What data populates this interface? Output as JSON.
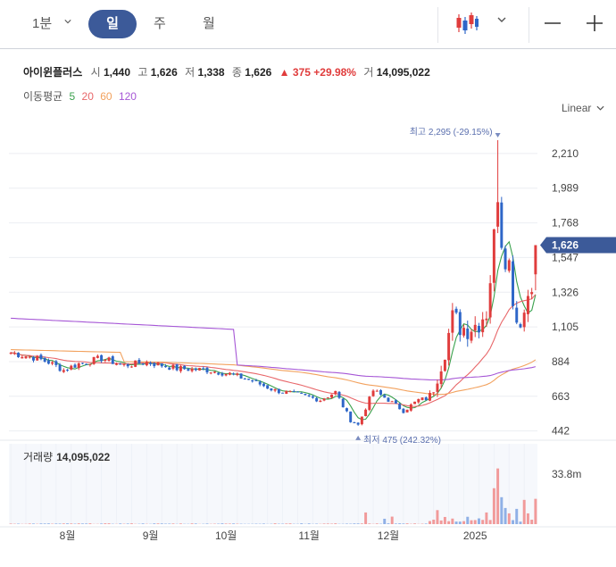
{
  "toolbar": {
    "timeframe_minute": "1분",
    "timeframe_day": "일",
    "timeframe_week": "주",
    "timeframe_month": "월",
    "chart_type_icon": "candlestick-icon",
    "zoom_out_icon": "minus-icon",
    "zoom_in_icon": "plus-icon"
  },
  "quote": {
    "name": "아이윈플러스",
    "open_label": "시",
    "open": "1,440",
    "high_label": "고",
    "high": "1,626",
    "low_label": "저",
    "low": "1,338",
    "close_label": "종",
    "close": "1,626",
    "change": "375",
    "change_pct": "+29.98%",
    "volume_label": "거",
    "volume": "14,095,022"
  },
  "moving_average": {
    "label": "이동평균",
    "periods": [
      "5",
      "20",
      "60",
      "120"
    ],
    "colors": [
      "#3aa14d",
      "#e8676a",
      "#f2a15d",
      "#a657d6"
    ]
  },
  "scale_mode": "Linear",
  "colors": {
    "up": "#e03c3c",
    "down": "#2e66c8",
    "accent": "#3c5a99"
  },
  "annotations": {
    "high": "최고 2,295 (-29.15%)",
    "low": "최저 475 (242.32%)",
    "current_price": "1,626"
  },
  "volume_panel": {
    "title": "거래량",
    "value": "14,095,022",
    "axis_max_label": "33.8m"
  },
  "chart_data": {
    "type": "candlestick",
    "y_ticks": [
      442,
      663,
      884,
      1105,
      1326,
      1547,
      1768,
      1989,
      2210
    ],
    "y_tick_labels": [
      "442",
      "663",
      "884",
      "1,105",
      "1,326",
      "1,547",
      "1,768",
      "1,989",
      "2,210"
    ],
    "ylim": [
      400,
      2420
    ],
    "x_tick_labels": [
      "8월",
      "9월",
      "10월",
      "11월",
      "12월",
      "2025"
    ],
    "x_tick_positions": [
      15,
      37,
      57,
      79,
      100,
      123
    ],
    "n_days": 140,
    "volume_max": 33800000,
    "ohlc_keypoints": [
      [
        0,
        940
      ],
      [
        6,
        910
      ],
      [
        10,
        880
      ],
      [
        14,
        830
      ],
      [
        18,
        870
      ],
      [
        24,
        905
      ],
      [
        30,
        860
      ],
      [
        36,
        880
      ],
      [
        44,
        840
      ],
      [
        52,
        830
      ],
      [
        58,
        805
      ],
      [
        64,
        760
      ],
      [
        70,
        700
      ],
      [
        76,
        675
      ],
      [
        82,
        640
      ],
      [
        86,
        690
      ],
      [
        90,
        510
      ],
      [
        92,
        480
      ],
      [
        96,
        700
      ],
      [
        100,
        640
      ],
      [
        104,
        570
      ],
      [
        108,
        640
      ],
      [
        111,
        650
      ],
      [
        114,
        880
      ],
      [
        117,
        1150
      ],
      [
        120,
        1100
      ],
      [
        123,
        1120
      ],
      [
        126,
        1210
      ],
      [
        128,
        1650
      ],
      [
        129,
        2150
      ],
      [
        130,
        1700
      ],
      [
        132,
        1500
      ],
      [
        134,
        1150
      ],
      [
        136,
        1200
      ],
      [
        138,
        1440
      ],
      [
        139,
        1626
      ]
    ],
    "volume_spikes": [
      {
        "day": 94,
        "value": 6500000
      },
      {
        "day": 99,
        "value": 3000000
      },
      {
        "day": 101,
        "value": 4200000
      },
      {
        "day": 113,
        "value": 7800000
      },
      {
        "day": 115,
        "value": 4000000
      },
      {
        "day": 117,
        "value": 3100000
      },
      {
        "day": 121,
        "value": 4100000
      },
      {
        "day": 124,
        "value": 3200000
      },
      {
        "day": 126,
        "value": 6500000
      },
      {
        "day": 128,
        "value": 20000000
      },
      {
        "day": 129,
        "value": 31000000
      },
      {
        "day": 130,
        "value": 15000000
      },
      {
        "day": 131,
        "value": 9000000
      },
      {
        "day": 132,
        "value": 6000000
      },
      {
        "day": 134,
        "value": 8500000
      },
      {
        "day": 136,
        "value": 13500000
      },
      {
        "day": 137,
        "value": 6000000
      },
      {
        "day": 139,
        "value": 14095022
      }
    ]
  }
}
